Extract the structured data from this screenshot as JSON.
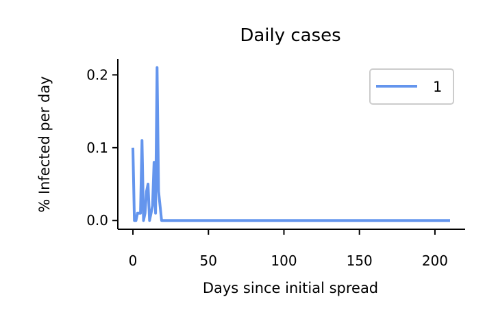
{
  "chart_data": {
    "type": "line",
    "title": "Daily cases",
    "xlabel": "Days since initial spread",
    "ylabel": "% Infected per day",
    "xlim": [
      -10,
      220
    ],
    "ylim": [
      -0.012,
      0.222
    ],
    "xticks": [
      0,
      50,
      100,
      150,
      200
    ],
    "yticks": [
      0.0,
      0.1,
      0.2
    ],
    "ytick_labels": [
      "0.0",
      "0.1",
      "0.2"
    ],
    "grid": false,
    "legend": {
      "position": "top-right",
      "entries": [
        "1"
      ]
    },
    "series": [
      {
        "name": "1",
        "color": "#6495ED",
        "x": [
          0,
          1,
          2,
          3,
          4,
          5,
          6,
          7,
          8,
          9,
          10,
          11,
          12,
          13,
          14,
          15,
          16,
          17,
          18,
          19,
          20,
          21,
          210
        ],
        "y": [
          0.1,
          0.0,
          0.0,
          0.01,
          0.01,
          0.01,
          0.11,
          0.0,
          0.01,
          0.04,
          0.05,
          0.0,
          0.01,
          0.02,
          0.08,
          0.01,
          0.21,
          0.04,
          0.02,
          0.0,
          0.0,
          0.0,
          0.0
        ]
      }
    ]
  }
}
